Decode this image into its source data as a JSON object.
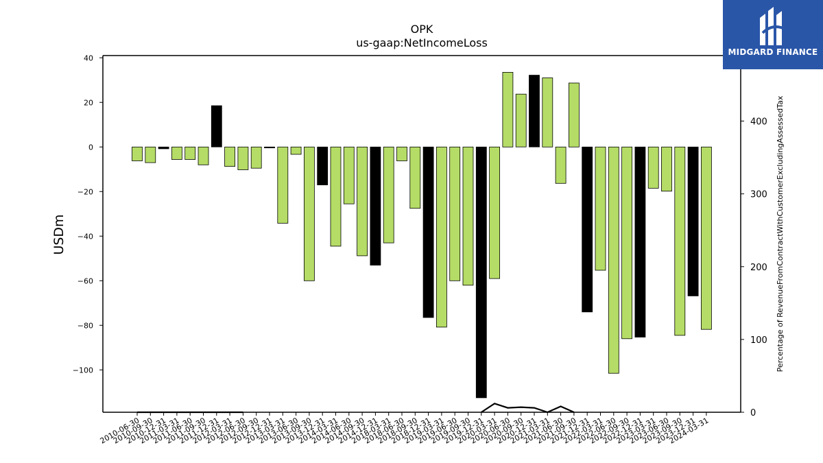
{
  "chart_data": {
    "type": "bar",
    "title": "OPK",
    "subtitle": "us-gaap:NetIncomeLoss",
    "ylabel": "USDm",
    "y2label": "Percentage of RevenueFromContractWithCustomerExcludingAssessedTax",
    "ylim": [
      -119,
      41
    ],
    "y2lim": [
      0,
      490
    ],
    "yticks": [
      "40",
      "20",
      "0",
      "−20",
      "−40",
      "−60",
      "−80",
      "−100"
    ],
    "y2ticks": [
      "400",
      "300",
      "200",
      "100",
      "0"
    ],
    "grid": false,
    "colors": {
      "quarter": "#b5dc66",
      "year_end": "#000000",
      "edge": "#000000",
      "line": "#000000"
    },
    "categories": [
      "2010-06-30",
      "2010-09-30",
      "2010-12-31",
      "2011-03-31",
      "2011-06-30",
      "2011-09-30",
      "2011-12-31",
      "2012-03-31",
      "2012-06-30",
      "2012-09-30",
      "2012-12-31",
      "2013-03-31",
      "2013-06-30",
      "2013-09-30",
      "2013-12-31",
      "2014-03-31",
      "2014-06-30",
      "2014-09-30",
      "2014-12-31",
      "2018-03-31",
      "2018-06-30",
      "2018-09-30",
      "2018-12-31",
      "2019-03-31",
      "2019-06-30",
      "2019-09-30",
      "2019-12-31",
      "2020-03-31",
      "2020-06-30",
      "2020-09-30",
      "2020-12-31",
      "2021-03-31",
      "2021-06-30",
      "2021-09-30",
      "2021-12-31",
      "2022-03-31",
      "2022-06-30",
      "2022-09-30",
      "2022-12-31",
      "2023-03-31",
      "2023-06-30",
      "2023-09-30",
      "2023-12-31",
      "2024-03-31"
    ],
    "values": [
      -6.2,
      -7.0,
      -0.8,
      -5.6,
      -5.6,
      -8.0,
      18.5,
      -8.7,
      -10.2,
      -9.5,
      -0.4,
      -34.2,
      -3.3,
      -60.0,
      -17.0,
      -44.5,
      -25.5,
      -48.8,
      -53.0,
      -43.0,
      -6.2,
      -27.5,
      -76.5,
      -80.8,
      -60.0,
      -62.0,
      -112.5,
      -59.0,
      33.5,
      23.7,
      32.2,
      31.0,
      -16.3,
      28.7,
      -74.0,
      -55.3,
      -101.5,
      -86.0,
      -85.3,
      -18.5,
      -19.8,
      -84.5,
      -66.8,
      -81.8
    ],
    "year_end": [
      false,
      false,
      true,
      false,
      false,
      false,
      true,
      false,
      false,
      false,
      true,
      false,
      false,
      false,
      true,
      false,
      false,
      false,
      true,
      false,
      false,
      false,
      true,
      false,
      false,
      false,
      true,
      false,
      false,
      false,
      true,
      false,
      false,
      false,
      true,
      false,
      false,
      false,
      true,
      false,
      false,
      false,
      true,
      false
    ],
    "line_segments": [
      {
        "name": "",
        "x": [
          "2010-06-30",
          "2010-09-30",
          "2010-12-31",
          "2011-03-31",
          "2011-06-30",
          "2011-09-30",
          "2011-12-31",
          "2012-03-31",
          "2012-06-30"
        ],
        "y": [
          0,
          0,
          0,
          0,
          0,
          0,
          0,
          0,
          0
        ]
      },
      {
        "name": "",
        "x": [
          "2019-12-31",
          "2020-03-31",
          "2020-06-30",
          "2020-09-30",
          "2020-12-31",
          "2021-03-31",
          "2021-06-30",
          "2021-09-30"
        ],
        "y": [
          0,
          12,
          6,
          7,
          6,
          0,
          8,
          0
        ]
      }
    ]
  },
  "logo": {
    "text": "MIDGARD FINANCE",
    "icon": "midgard-logo-icon"
  }
}
